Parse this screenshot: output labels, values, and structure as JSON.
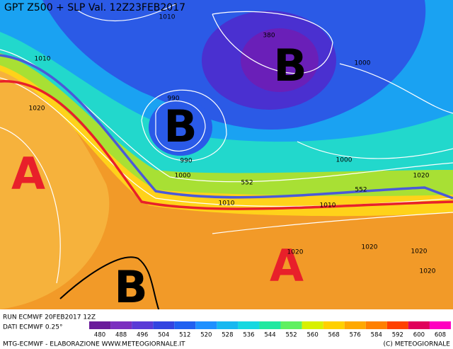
{
  "header": {
    "title": "GPT Z500 + SLP Val. 12Z23FEB2017"
  },
  "centers": [
    "A",
    "B",
    "B",
    "A",
    "B"
  ],
  "contour_labels": [
    "1010",
    "380",
    "1000",
    "1010",
    "1020",
    "990",
    "990",
    "1000",
    "1000",
    "552",
    "1010",
    "1010",
    "552",
    "1020",
    "1020",
    "1020",
    "1020",
    "1020"
  ],
  "info": {
    "run": "RUN ECMWF 20FEB2017 12Z",
    "source": "DATI ECMWF 0.25°"
  },
  "footer": {
    "left": "MTG-ECMWF - ELABORAZIONE WWW.METEOGIORNALE.IT",
    "right": "(C) METEOGIORNALE"
  },
  "colorbar": {
    "ticks": [
      "480",
      "488",
      "496",
      "504",
      "512",
      "520",
      "528",
      "536",
      "544",
      "552",
      "560",
      "568",
      "576",
      "584",
      "592",
      "600",
      "608"
    ]
  }
}
